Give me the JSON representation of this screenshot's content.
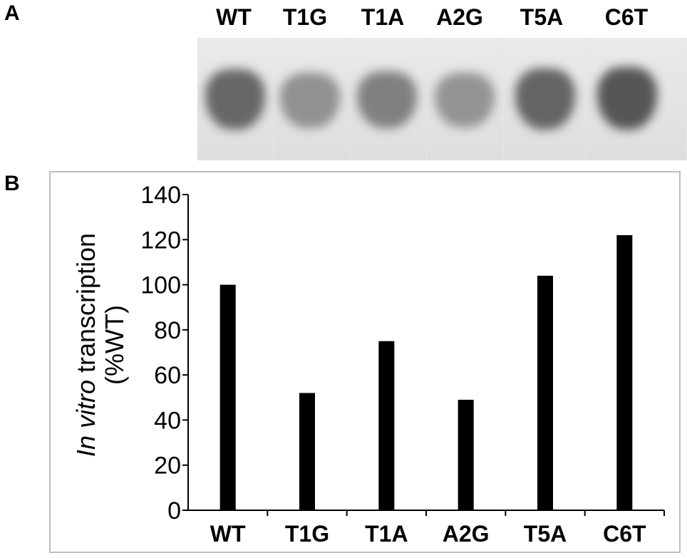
{
  "panels": {
    "a_label": "A",
    "b_label": "B"
  },
  "gel": {
    "lanes": [
      "WT",
      "T1G",
      "T1A",
      "A2G",
      "T5A",
      "C6T"
    ],
    "band_intensity": [
      0.8,
      0.5,
      0.62,
      0.48,
      0.82,
      0.92
    ]
  },
  "chart_data": {
    "type": "bar",
    "categories": [
      "WT",
      "T1G",
      "T1A",
      "A2G",
      "T5A",
      "C6T"
    ],
    "values": [
      100,
      52,
      75,
      49,
      104,
      122
    ],
    "ylim": [
      0,
      140
    ],
    "yticks": [
      0,
      20,
      40,
      60,
      80,
      100,
      120,
      140
    ],
    "ylabel_italic": "In vitro",
    "ylabel_rest": " transcription",
    "ylabel_line2": "(%WT)",
    "title": "",
    "xlabel": "",
    "grid": false,
    "bar_color": "#000000"
  }
}
